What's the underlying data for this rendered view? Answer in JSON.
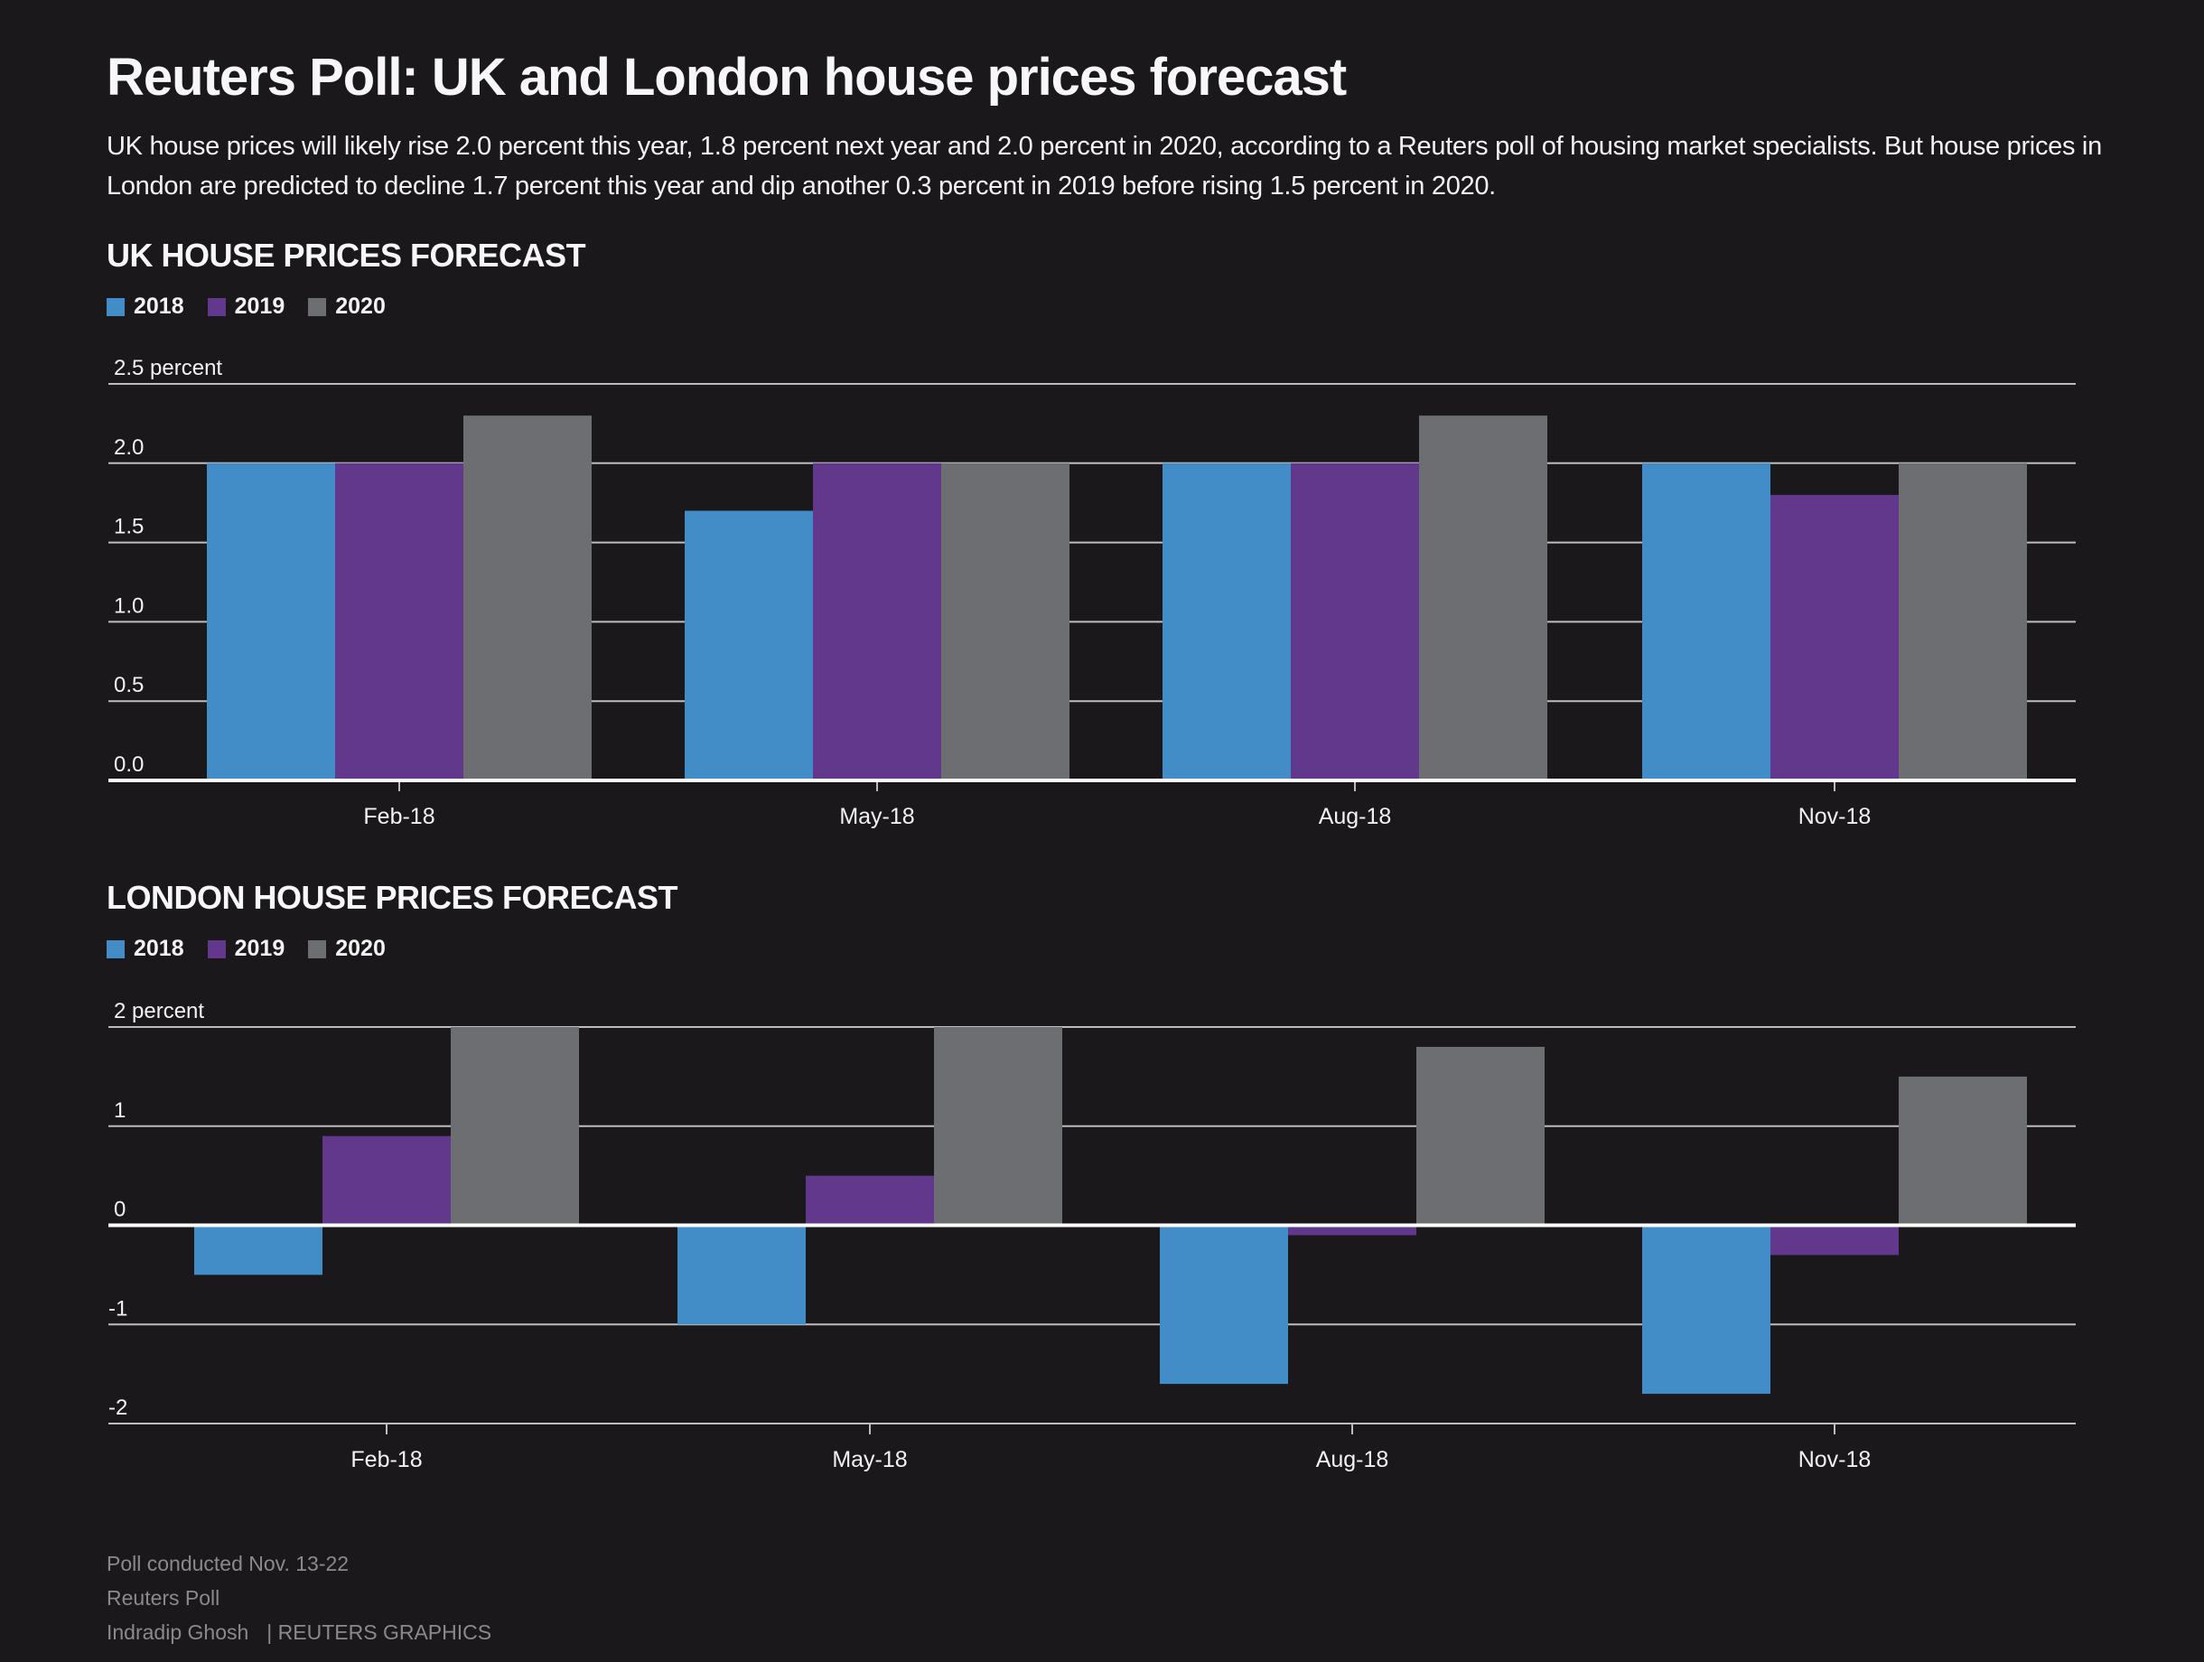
{
  "title": "Reuters Poll: UK and London house prices forecast",
  "description": "UK house prices will likely rise 2.0 percent this year, 1.8 percent next year and 2.0 percent in 2020, according to a Reuters poll of housing market specialists. But house prices in London are predicted to decline 1.7 percent this year and dip another 0.3 percent in 2019 before rising 1.5 percent in 2020.",
  "colors": {
    "background": "#1a181b",
    "series_2018": "#428dc8",
    "series_2019": "#61388b",
    "series_2020": "#6d6e71",
    "gridline": "#bdbdbd",
    "baseline": "#ffffff",
    "footer_text": "#8b898d"
  },
  "chart_data": [
    {
      "type": "bar",
      "title": "UK HOUSE PRICES FORECAST",
      "ylabel": "percent",
      "ytick_labels": [
        "0.0",
        "0.5",
        "1.0",
        "1.5",
        "2.0",
        "2.5 percent"
      ],
      "yticks": [
        0,
        0.5,
        1.0,
        1.5,
        2.0,
        2.5
      ],
      "ylim": [
        0,
        2.5
      ],
      "grid": true,
      "legend_placement": "top-left",
      "categories": [
        "Feb-18",
        "May-18",
        "Aug-18",
        "Nov-18"
      ],
      "series": [
        {
          "name": "2018",
          "color": "#428dc8",
          "values": [
            2.0,
            1.7,
            2.0,
            2.0
          ]
        },
        {
          "name": "2019",
          "color": "#61388b",
          "values": [
            2.0,
            2.0,
            2.0,
            1.8
          ]
        },
        {
          "name": "2020",
          "color": "#6d6e71",
          "values": [
            2.3,
            2.0,
            2.3,
            2.0
          ]
        }
      ]
    },
    {
      "type": "bar",
      "title": "LONDON HOUSE PRICES FORECAST",
      "ylabel": "percent",
      "ytick_labels": [
        "-2",
        "-1",
        "0",
        "1",
        "2 percent"
      ],
      "yticks": [
        -2,
        -1,
        0,
        1,
        2
      ],
      "ylim": [
        -2,
        2
      ],
      "grid": true,
      "legend_placement": "top-left",
      "categories": [
        "Feb-18",
        "May-18",
        "Aug-18",
        "Nov-18"
      ],
      "series": [
        {
          "name": "2018",
          "color": "#428dc8",
          "values": [
            -0.5,
            -1.0,
            -1.6,
            -1.7
          ]
        },
        {
          "name": "2019",
          "color": "#61388b",
          "values": [
            0.9,
            0.5,
            -0.1,
            -0.3
          ]
        },
        {
          "name": "2020",
          "color": "#6d6e71",
          "values": [
            2.0,
            2.0,
            1.8,
            1.5
          ]
        }
      ]
    }
  ],
  "footer": {
    "line1": "Poll conducted Nov. 13-22",
    "line2": "Reuters Poll",
    "author": "Indradip Ghosh",
    "credit": "| REUTERS GRAPHICS"
  }
}
